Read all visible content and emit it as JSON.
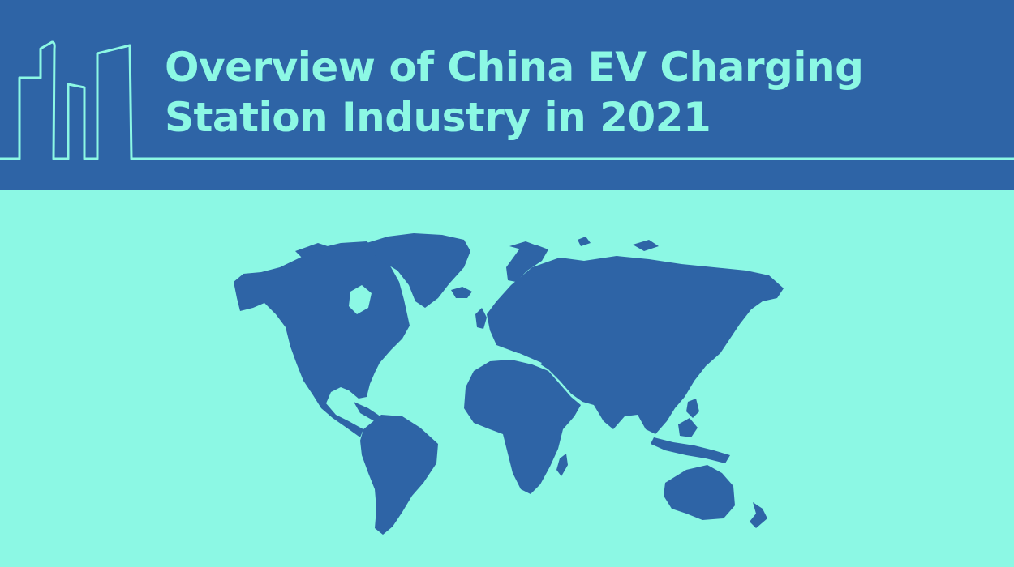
{
  "header": {
    "title_line_1": "Overview of China EV Charging",
    "title_line_2": "Station Industry in 2021",
    "icon": "city-skyline-line-icon"
  },
  "main": {
    "image": "world-map"
  },
  "colors": {
    "header_background": "#2E64A6",
    "accent": "#8CF8E4",
    "page_background": "#8CF8E4",
    "map_fill": "#2E64A6"
  }
}
